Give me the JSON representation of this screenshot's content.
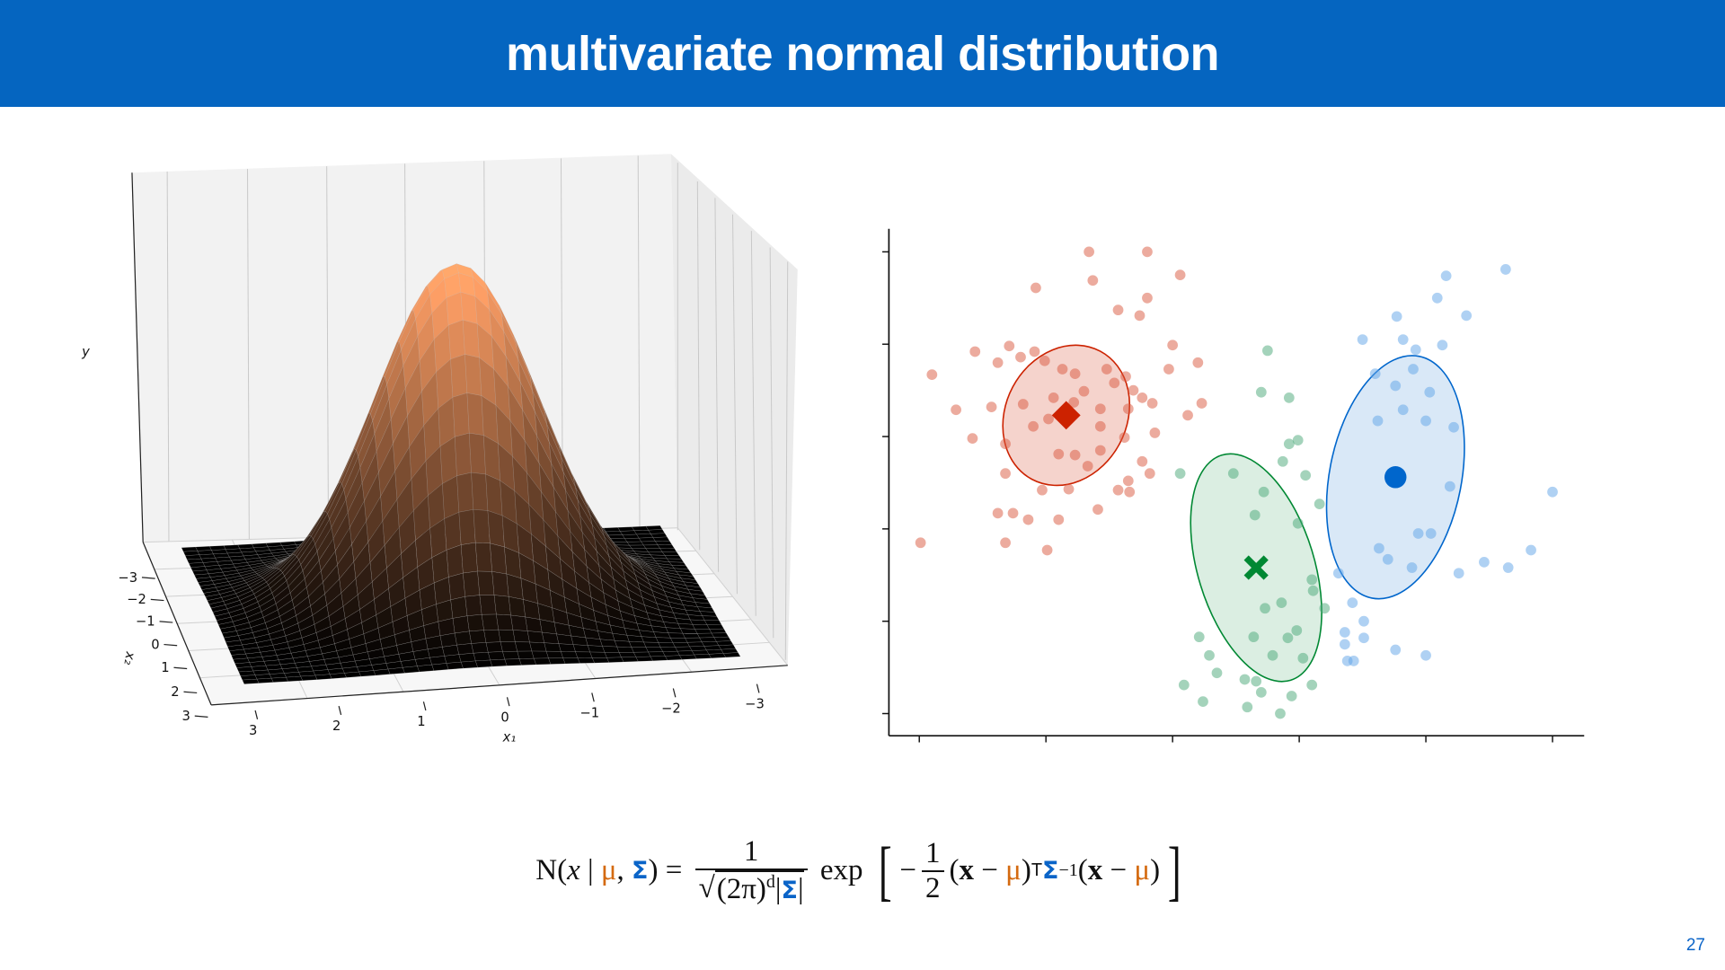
{
  "title": "multivariate normal distribution",
  "page_number": "27",
  "colors": {
    "title_bar": "#0565c0",
    "orange": "#d46a10",
    "blue": "#0a64c8"
  },
  "formula": {
    "n": "N",
    "open": "(",
    "close": ")",
    "x": "x",
    "given": " | ",
    "mu": "μ",
    "comma": ", ",
    "sigma": "Σ",
    "equals": " = ",
    "one": "1",
    "two_pi": "(2π)",
    "d": "d",
    "abs_bar": "|",
    "exp": " exp ",
    "left_bracket": "[",
    "right_bracket": "]",
    "minus": "−",
    "two": "2",
    "x_bold": "x",
    "minus_sp": " − ",
    "transpose": "T",
    "inverse": "−1"
  },
  "chart_data": [
    {
      "type": "surface",
      "function": "standard bivariate normal density",
      "colormap": "copper",
      "x1_range": [
        -3,
        3
      ],
      "x2_range": [
        -3,
        3
      ],
      "x1_ticks": [
        "3",
        "2",
        "1",
        "0",
        "−1",
        "−2",
        "−3"
      ],
      "x2_ticks": [
        "−3",
        "−2",
        "−1",
        "0",
        "1",
        "2",
        "3"
      ],
      "xlabel": "x₁",
      "ylabel": "x₂",
      "zlabel": "y",
      "grid": true
    },
    {
      "type": "scatter",
      "xlim": [
        -0.24,
        5.25
      ],
      "ylim": [
        -0.24,
        5.25
      ],
      "x_ticks": [
        0,
        1,
        2,
        3,
        4,
        5
      ],
      "y_ticks": [
        0,
        1,
        2,
        3,
        4,
        5
      ],
      "tick_labels_shown": false,
      "series": [
        {
          "color": "#d9583e",
          "mean_marker": "diamond",
          "mean_color": "#cc2200",
          "mean": [
            1.16,
            3.23
          ],
          "ellipse_fill": "rgba(204,34,0,0.2)",
          "points": [
            [
              1.34,
              5.0
            ],
            [
              1.8,
              5.0
            ],
            [
              1.37,
              4.69
            ],
            [
              2.06,
              4.75
            ],
            [
              0.92,
              4.61
            ],
            [
              1.57,
              4.37
            ],
            [
              1.8,
              4.5
            ],
            [
              1.74,
              4.31
            ],
            [
              0.1,
              3.67
            ],
            [
              0.44,
              3.92
            ],
            [
              0.62,
              3.8
            ],
            [
              0.71,
              3.98
            ],
            [
              0.8,
              3.86
            ],
            [
              0.91,
              3.92
            ],
            [
              0.99,
              3.82
            ],
            [
              1.13,
              3.73
            ],
            [
              1.23,
              3.68
            ],
            [
              1.48,
              3.73
            ],
            [
              1.63,
              3.65
            ],
            [
              1.54,
              3.58
            ],
            [
              1.69,
              3.5
            ],
            [
              1.06,
              3.42
            ],
            [
              1.3,
              3.49
            ],
            [
              1.76,
              3.42
            ],
            [
              1.84,
              3.36
            ],
            [
              0.29,
              3.29
            ],
            [
              0.57,
              3.32
            ],
            [
              0.82,
              3.35
            ],
            [
              1.02,
              3.19
            ],
            [
              1.22,
              3.37
            ],
            [
              1.43,
              3.3
            ],
            [
              1.65,
              3.3
            ],
            [
              0.42,
              2.98
            ],
            [
              0.9,
              3.11
            ],
            [
              1.43,
              3.11
            ],
            [
              1.62,
              2.99
            ],
            [
              1.86,
              3.04
            ],
            [
              0.68,
              2.92
            ],
            [
              1.1,
              2.81
            ],
            [
              1.23,
              2.8
            ],
            [
              1.43,
              2.85
            ],
            [
              1.33,
              2.68
            ],
            [
              1.76,
              2.73
            ],
            [
              1.82,
              2.6
            ],
            [
              0.68,
              2.6
            ],
            [
              0.97,
              2.42
            ],
            [
              1.18,
              2.43
            ],
            [
              1.57,
              2.42
            ],
            [
              1.66,
              2.4
            ],
            [
              1.65,
              2.52
            ],
            [
              1.41,
              2.21
            ],
            [
              0.62,
              2.17
            ],
            [
              0.74,
              2.17
            ],
            [
              0.86,
              2.1
            ],
            [
              1.1,
              2.1
            ],
            [
              0.01,
              1.85
            ],
            [
              0.68,
              1.85
            ],
            [
              1.01,
              1.77
            ],
            [
              2.0,
              3.99
            ],
            [
              1.97,
              3.73
            ],
            [
              2.2,
              3.8
            ],
            [
              2.12,
              3.23
            ],
            [
              2.23,
              3.36
            ]
          ]
        },
        {
          "color": "#4aa878",
          "mean_marker": "x",
          "mean_color": "#008833",
          "mean": [
            2.66,
            1.58
          ],
          "ellipse_fill": "rgba(0,136,51,0.14)",
          "points": [
            [
              2.75,
              3.93
            ],
            [
              2.7,
              3.48
            ],
            [
              2.92,
              3.42
            ],
            [
              2.92,
              2.92
            ],
            [
              2.99,
              2.96
            ],
            [
              2.87,
              2.73
            ],
            [
              2.48,
              2.6
            ],
            [
              2.06,
              2.6
            ],
            [
              2.72,
              2.4
            ],
            [
              3.05,
              2.58
            ],
            [
              3.16,
              2.27
            ],
            [
              2.65,
              2.15
            ],
            [
              2.99,
              2.06
            ],
            [
              3.1,
              1.45
            ],
            [
              3.11,
              1.33
            ],
            [
              2.86,
              1.2
            ],
            [
              2.73,
              1.14
            ],
            [
              3.2,
              1.14
            ],
            [
              2.98,
              0.9
            ],
            [
              2.21,
              0.83
            ],
            [
              2.64,
              0.83
            ],
            [
              2.91,
              0.82
            ],
            [
              2.29,
              0.63
            ],
            [
              2.79,
              0.63
            ],
            [
              3.03,
              0.6
            ],
            [
              2.35,
              0.44
            ],
            [
              2.57,
              0.37
            ],
            [
              2.66,
              0.35
            ],
            [
              3.1,
              0.31
            ],
            [
              2.09,
              0.31
            ],
            [
              2.7,
              0.23
            ],
            [
              2.94,
              0.19
            ],
            [
              2.24,
              0.13
            ],
            [
              2.59,
              0.07
            ],
            [
              2.85,
              0.0
            ]
          ]
        },
        {
          "color": "#5fa3e8",
          "mean_marker": "circle",
          "mean_color": "#0066cc",
          "mean": [
            3.76,
            2.56
          ],
          "ellipse_fill": "rgba(0,102,204,0.15)",
          "points": [
            [
              4.16,
              4.74
            ],
            [
              4.63,
              4.81
            ],
            [
              4.09,
              4.5
            ],
            [
              3.77,
              4.3
            ],
            [
              4.32,
              4.31
            ],
            [
              3.5,
              4.05
            ],
            [
              3.82,
              4.05
            ],
            [
              4.13,
              3.99
            ],
            [
              3.92,
              3.94
            ],
            [
              3.6,
              3.68
            ],
            [
              3.9,
              3.73
            ],
            [
              3.76,
              3.55
            ],
            [
              4.03,
              3.48
            ],
            [
              3.82,
              3.29
            ],
            [
              3.62,
              3.17
            ],
            [
              4.0,
              3.17
            ],
            [
              4.22,
              3.1
            ],
            [
              4.19,
              2.46
            ],
            [
              5.0,
              2.4
            ],
            [
              3.94,
              1.95
            ],
            [
              4.04,
              1.95
            ],
            [
              3.63,
              1.79
            ],
            [
              3.7,
              1.67
            ],
            [
              3.89,
              1.58
            ],
            [
              4.83,
              1.77
            ],
            [
              4.46,
              1.64
            ],
            [
              4.65,
              1.58
            ],
            [
              4.26,
              1.52
            ],
            [
              3.31,
              1.52
            ],
            [
              3.42,
              1.2
            ],
            [
              3.51,
              1.0
            ],
            [
              3.36,
              0.88
            ],
            [
              3.51,
              0.82
            ],
            [
              3.36,
              0.75
            ],
            [
              3.76,
              0.69
            ],
            [
              4.0,
              0.63
            ],
            [
              3.38,
              0.57
            ],
            [
              3.43,
              0.57
            ]
          ]
        }
      ]
    }
  ]
}
